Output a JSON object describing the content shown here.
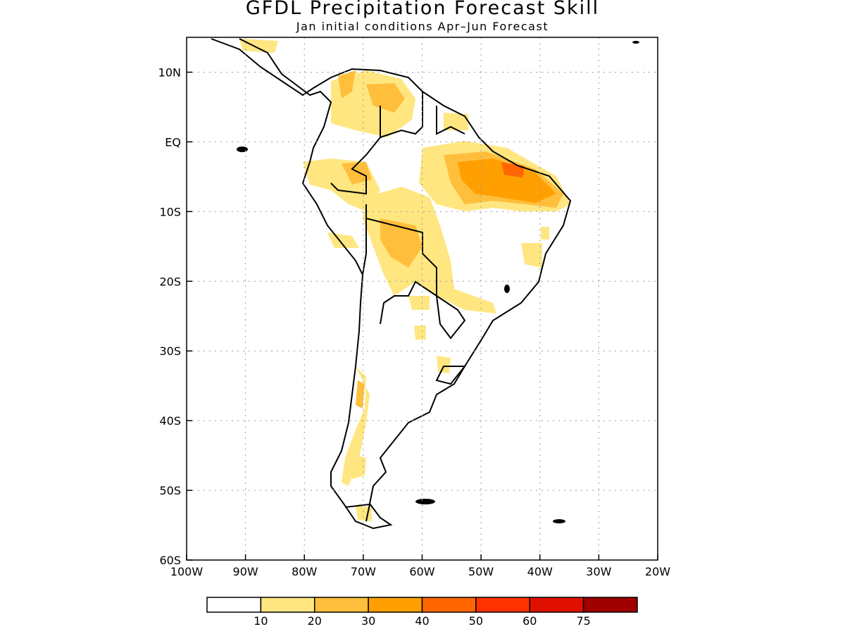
{
  "title": "GFDL Precipitation Forecast Skill",
  "subtitle": "Jan initial conditions  Apr–Jun Forecast",
  "map": {
    "lon_range": [
      -100,
      -20
    ],
    "lat_range": [
      -60,
      15
    ],
    "lon_ticks": [
      {
        "value": -100,
        "label": "100W"
      },
      {
        "value": -90,
        "label": "90W"
      },
      {
        "value": -80,
        "label": "80W"
      },
      {
        "value": -70,
        "label": "70W"
      },
      {
        "value": -60,
        "label": "60W"
      },
      {
        "value": -50,
        "label": "50W"
      },
      {
        "value": -40,
        "label": "40W"
      },
      {
        "value": -30,
        "label": "30W"
      },
      {
        "value": -20,
        "label": "20W"
      }
    ],
    "lat_ticks": [
      {
        "value": 10,
        "label": "10N"
      },
      {
        "value": 0,
        "label": "EQ"
      },
      {
        "value": -10,
        "label": "10S"
      },
      {
        "value": -20,
        "label": "20S"
      },
      {
        "value": -30,
        "label": "30S"
      },
      {
        "value": -40,
        "label": "40S"
      },
      {
        "value": -50,
        "label": "50S"
      },
      {
        "value": -60,
        "label": "60S"
      }
    ],
    "grid": "dotted"
  },
  "legend": {
    "bins": [
      {
        "color": "#ffffff"
      },
      {
        "color": "#ffe680"
      },
      {
        "color": "#ffbf3c"
      },
      {
        "color": "#ff9f00"
      },
      {
        "color": "#ff6600"
      },
      {
        "color": "#ff3300"
      },
      {
        "color": "#e01000"
      },
      {
        "color": "#a00000"
      }
    ],
    "labels": [
      "10",
      "20",
      "30",
      "40",
      "50",
      "60",
      "75"
    ]
  }
}
